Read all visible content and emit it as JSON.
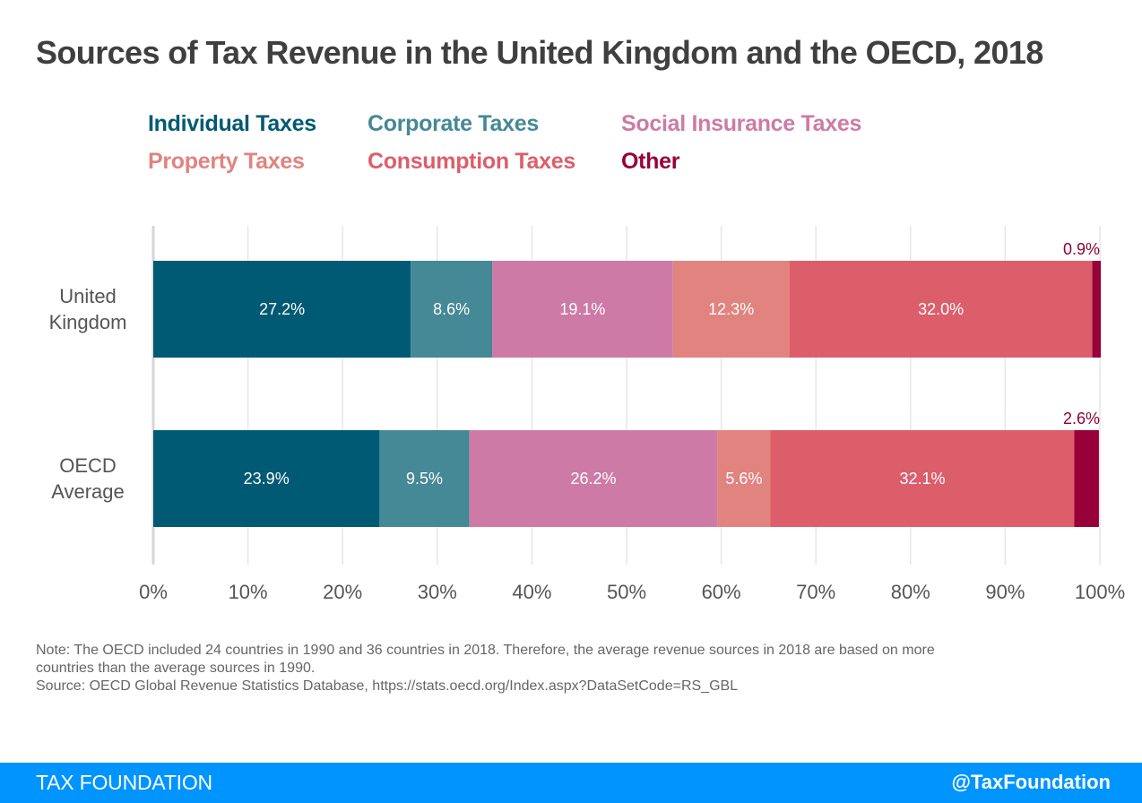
{
  "chart_data": {
    "type": "bar",
    "orientation": "horizontal",
    "stacked": true,
    "title": "Sources of Tax Revenue in the United Kingdom and the OECD, 2018",
    "categories": [
      "United Kingdom",
      "OECD Average"
    ],
    "category_lines": [
      [
        "United",
        "Kingdom"
      ],
      [
        "OECD",
        "Average"
      ]
    ],
    "series": [
      {
        "name": "Individual Taxes",
        "color": "#005a74",
        "values": [
          27.2,
          23.9
        ],
        "labels": [
          "27.2%",
          "23.9%"
        ]
      },
      {
        "name": "Corporate Taxes",
        "color": "#458896",
        "values": [
          8.6,
          9.5
        ],
        "labels": [
          "8.6%",
          "9.5%"
        ]
      },
      {
        "name": "Social Insurance Taxes",
        "color": "#cd7ba6",
        "values": [
          19.1,
          26.2
        ],
        "labels": [
          "19.1%",
          "26.2%"
        ]
      },
      {
        "name": "Property Taxes",
        "color": "#e1837f",
        "values": [
          12.3,
          5.6
        ],
        "labels": [
          "12.3%",
          "5.6%"
        ]
      },
      {
        "name": "Consumption Taxes",
        "color": "#dd5e6b",
        "values": [
          32.0,
          32.1
        ],
        "labels": [
          "32.0%",
          "32.1%"
        ]
      },
      {
        "name": "Other",
        "color": "#970038",
        "values": [
          0.9,
          2.6
        ],
        "labels": [
          "0.9%",
          "2.6%"
        ],
        "label_position": "above"
      }
    ],
    "xlim": [
      0,
      100
    ],
    "xticks": [
      0,
      10,
      20,
      30,
      40,
      50,
      60,
      70,
      80,
      90,
      100
    ],
    "xtick_labels": [
      "0%",
      "10%",
      "20%",
      "30%",
      "40%",
      "50%",
      "60%",
      "70%",
      "80%",
      "90%",
      "100%"
    ],
    "xlabel": "",
    "ylabel": "",
    "grid": true,
    "legend": "top"
  },
  "notes": {
    "line1": "Note: The OECD included 24 countries in 1990 and 36 countries in 2018. Therefore, the average revenue sources in 2018 are based on more",
    "line2": "countries than the average sources in 1990.",
    "line3": "Source: OECD Global Revenue Statistics Database, https://stats.oecd.org/Index.aspx?DataSetCode=RS_GBL"
  },
  "footer": {
    "brand": "TAX FOUNDATION",
    "handle": "@TaxFoundation",
    "color": "#0094ff"
  }
}
